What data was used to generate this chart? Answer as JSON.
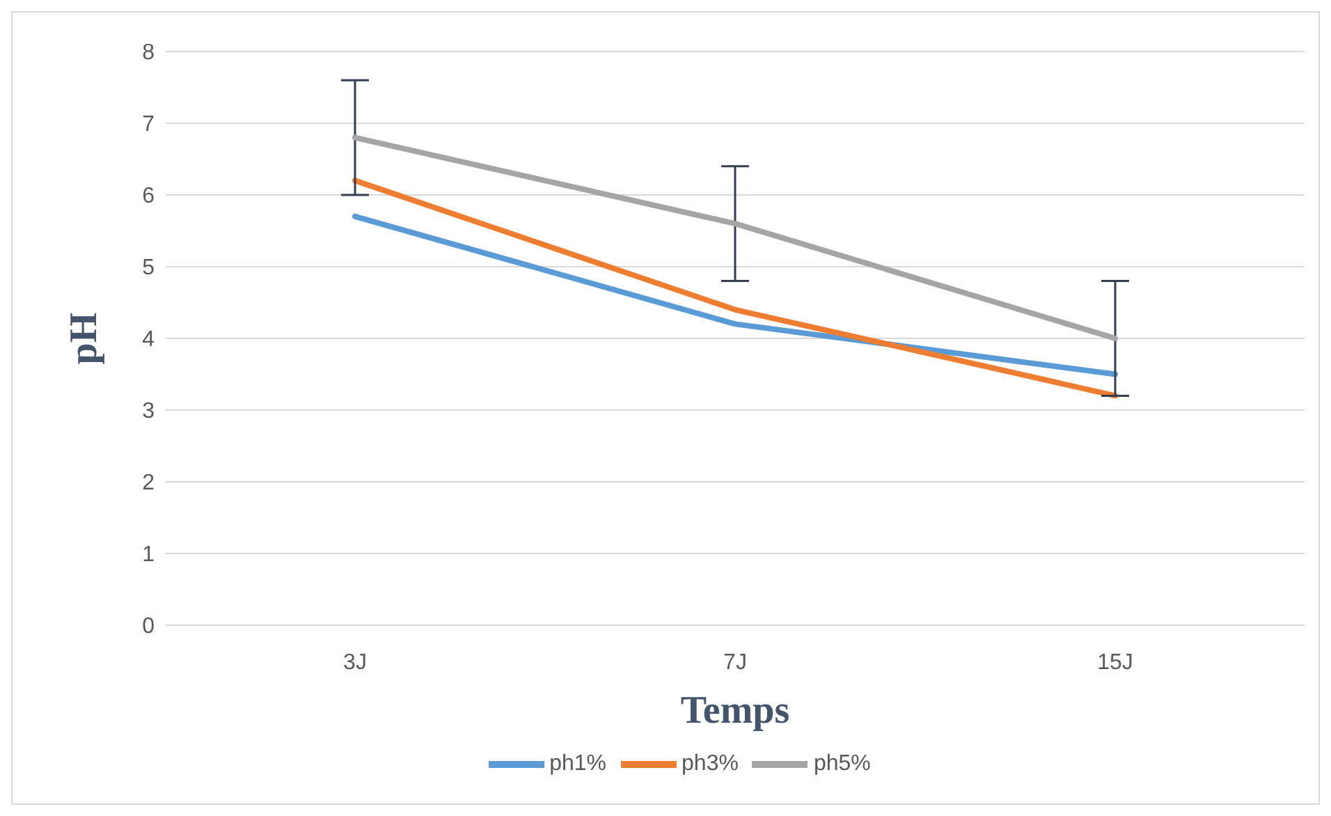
{
  "chart_data": {
    "type": "line",
    "xlabel": "Temps",
    "ylabel": "pH",
    "categories": [
      "3J",
      "7J",
      "15J"
    ],
    "series": [
      {
        "name": "ph1%",
        "color": "#5b9bd5",
        "values": [
          5.7,
          4.2,
          3.5
        ]
      },
      {
        "name": "ph3%",
        "color": "#ed7d31",
        "values": [
          6.2,
          4.4,
          3.2
        ]
      },
      {
        "name": "ph5%",
        "color": "#a5a5a5",
        "values": [
          6.8,
          5.6,
          4.0
        ],
        "errors": [
          0.8,
          0.8,
          0.8
        ]
      }
    ],
    "ylim": [
      0,
      8
    ],
    "yticks": [
      0,
      1,
      2,
      3,
      4,
      5,
      6,
      7,
      8
    ],
    "grid": "y",
    "legend": "bottom",
    "marker": "none",
    "line_style": "solid"
  }
}
